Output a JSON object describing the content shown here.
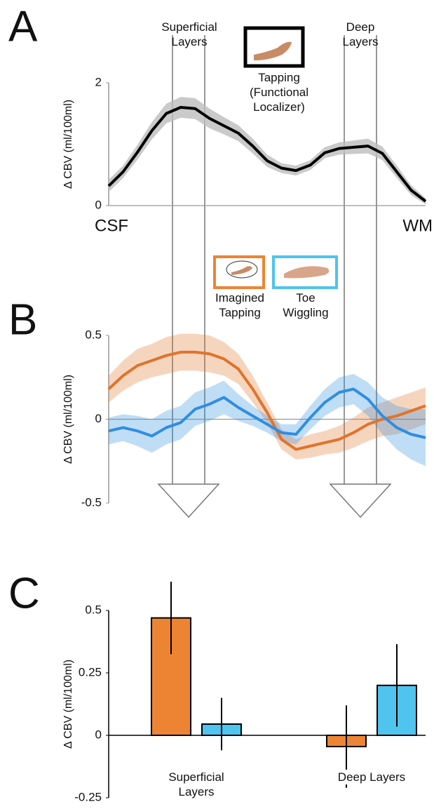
{
  "chart_data": [
    {
      "type": "line",
      "panel": "A",
      "ylabel": "Δ CBV (ml/100ml)",
      "annotations": [
        "Superficial Layers",
        "Deep Layers"
      ],
      "categories": [
        "CSF",
        null,
        null,
        null,
        null,
        null,
        null,
        null,
        null,
        null,
        null,
        null,
        null,
        null,
        null,
        null,
        null,
        null,
        null,
        null,
        null,
        null,
        "WM"
      ],
      "series": [
        {
          "name": "Tapping (Functional Localizer)",
          "color": "#000000",
          "values": [
            0.32,
            0.55,
            0.87,
            1.22,
            1.5,
            1.6,
            1.58,
            1.42,
            1.3,
            1.18,
            0.97,
            0.73,
            0.61,
            0.57,
            0.66,
            0.86,
            0.93,
            0.95,
            0.97,
            0.85,
            0.55,
            0.25,
            0.07
          ],
          "errors": [
            0.1,
            0.1,
            0.12,
            0.14,
            0.16,
            0.17,
            0.17,
            0.16,
            0.14,
            0.13,
            0.12,
            0.1,
            0.08,
            0.08,
            0.08,
            0.09,
            0.1,
            0.11,
            0.12,
            0.11,
            0.1,
            0.08,
            0.05
          ]
        }
      ],
      "ylim": [
        0,
        2
      ],
      "yticks": [
        0,
        2
      ]
    },
    {
      "type": "line",
      "panel": "B",
      "ylabel": "Δ CBV (ml/100ml)",
      "categories": [
        null,
        null,
        null,
        null,
        null,
        null,
        null,
        null,
        null,
        null,
        null,
        null,
        null,
        null,
        null,
        null,
        null,
        null,
        null,
        null,
        null,
        null,
        null
      ],
      "series": [
        {
          "name": "Imagined Tapping",
          "color": "#e0742a",
          "values": [
            0.18,
            0.26,
            0.32,
            0.35,
            0.38,
            0.4,
            0.4,
            0.39,
            0.36,
            0.3,
            0.18,
            0.04,
            -0.12,
            -0.18,
            -0.16,
            -0.14,
            -0.12,
            -0.08,
            -0.03,
            0.0,
            0.02,
            0.05,
            0.08
          ],
          "errors": [
            0.08,
            0.09,
            0.1,
            0.1,
            0.11,
            0.11,
            0.11,
            0.11,
            0.1,
            0.09,
            0.08,
            0.06,
            0.06,
            0.06,
            0.07,
            0.07,
            0.08,
            0.09,
            0.1,
            0.1,
            0.11,
            0.11,
            0.11
          ]
        },
        {
          "name": "Toe Wiggling",
          "color": "#2f8ee0",
          "values": [
            -0.07,
            -0.05,
            -0.07,
            -0.1,
            -0.05,
            -0.02,
            0.06,
            0.09,
            0.13,
            0.07,
            0.02,
            -0.03,
            -0.08,
            -0.09,
            0.01,
            0.1,
            0.16,
            0.18,
            0.12,
            0.02,
            -0.05,
            -0.09,
            -0.11
          ],
          "errors": [
            0.08,
            0.08,
            0.09,
            0.1,
            0.1,
            0.1,
            0.1,
            0.1,
            0.1,
            0.08,
            0.06,
            0.05,
            0.05,
            0.06,
            0.07,
            0.08,
            0.09,
            0.09,
            0.1,
            0.11,
            0.13,
            0.15,
            0.17
          ]
        }
      ],
      "ylim": [
        -0.5,
        0.5
      ],
      "yticks": [
        -0.5,
        0,
        0.5
      ]
    },
    {
      "type": "bar",
      "panel": "C",
      "ylabel": "Δ CBV (ml/100ml)",
      "categories": [
        "Superficial Layers",
        "Deep Layers"
      ],
      "series": [
        {
          "name": "Imagined Tapping",
          "color": "#ed8434",
          "values": [
            0.47,
            -0.045
          ],
          "errors": [
            0.145,
            0.165
          ]
        },
        {
          "name": "Toe Wiggling",
          "color": "#4ec4ee",
          "values": [
            0.045,
            0.2
          ],
          "errors": [
            0.105,
            0.165
          ]
        }
      ],
      "ylim": [
        -0.25,
        0.5
      ],
      "yticks": [
        -0.25,
        0,
        0.25,
        0.5
      ]
    }
  ]
}
